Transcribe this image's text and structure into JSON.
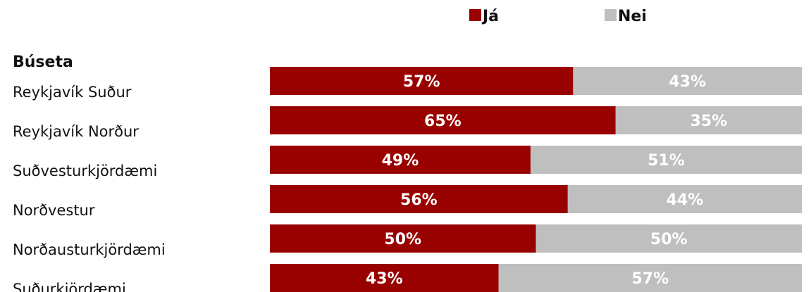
{
  "chart_data": {
    "type": "bar",
    "orientation": "horizontal",
    "stacked": true,
    "normalized": true,
    "group_title": "Búseta",
    "categories": [
      "Reykjavík Suður",
      "Reykjavík Norður",
      "Suðvesturkjördæmi",
      "Norðvestur",
      "Norðausturkjördæmi",
      "Suðurkjördæmi"
    ],
    "series": [
      {
        "name": "Já",
        "color": "#990000",
        "values": [
          57,
          65,
          49,
          56,
          50,
          43
        ]
      },
      {
        "name": "Nei",
        "color": "#BFBFC0",
        "values": [
          43,
          35,
          51,
          44,
          50,
          57
        ]
      }
    ],
    "value_suffix": "%",
    "xlim": [
      0,
      100
    ],
    "legend_position": "top",
    "grid": false
  }
}
